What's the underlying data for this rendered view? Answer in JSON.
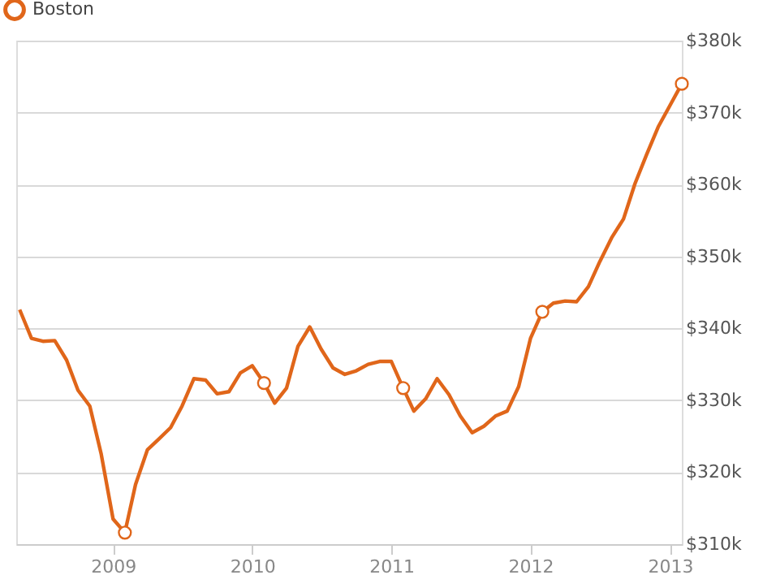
{
  "chart_data": {
    "type": "line",
    "x": [
      "2008-05",
      "2008-06",
      "2008-07",
      "2008-08",
      "2008-09",
      "2008-10",
      "2008-11",
      "2008-12",
      "2009-01",
      "2009-02",
      "2009-03",
      "2009-04",
      "2009-05",
      "2009-06",
      "2009-07",
      "2009-08",
      "2009-09",
      "2009-10",
      "2009-11",
      "2009-12",
      "2010-01",
      "2010-02",
      "2010-03",
      "2010-04",
      "2010-05",
      "2010-06",
      "2010-07",
      "2010-08",
      "2010-09",
      "2010-10",
      "2010-11",
      "2010-12",
      "2011-01",
      "2011-02",
      "2011-03",
      "2011-04",
      "2011-05",
      "2011-06",
      "2011-07",
      "2011-08",
      "2011-09",
      "2011-10",
      "2011-11",
      "2011-12",
      "2012-01",
      "2012-02",
      "2012-03",
      "2012-04",
      "2012-05",
      "2012-06",
      "2012-07",
      "2012-08",
      "2012-09",
      "2012-10",
      "2012-11",
      "2012-12",
      "2013-01",
      "2013-02"
    ],
    "series": [
      {
        "name": "Boston",
        "color": "#e0661a",
        "values": [
          342600,
          338600,
          338200,
          338300,
          335600,
          331400,
          329200,
          322500,
          313500,
          311600,
          318300,
          323100,
          324600,
          326200,
          329200,
          333000,
          332800,
          330900,
          331200,
          333800,
          334800,
          332400,
          329600,
          331700,
          337500,
          340200,
          337100,
          334500,
          333600,
          334100,
          335000,
          335400,
          335400,
          331700,
          328500,
          330200,
          333000,
          330800,
          327800,
          325500,
          326400,
          327800,
          328500,
          331900,
          338600,
          342300,
          343500,
          343800,
          343700,
          345800,
          349300,
          352600,
          355200,
          360100,
          364200,
          368000,
          371000,
          374000
        ],
        "marker": "none"
      },
      {
        "type": "scatter",
        "color": "#e0661a",
        "marker": "circle",
        "x": [
          "2009-02",
          "2010-02",
          "2011-02",
          "2012-02",
          "2013-02"
        ],
        "values": [
          311600,
          332400,
          331700,
          342300,
          374000
        ]
      }
    ],
    "xlim": [
      "2008-04-22",
      "2013-02-01"
    ],
    "xticks": [
      "2009",
      "2010",
      "2011",
      "2012",
      "2013"
    ],
    "ylim": [
      310000,
      380000
    ],
    "yticks": [
      {
        "value": 310000,
        "label": "$310k"
      },
      {
        "value": 320000,
        "label": "$320k"
      },
      {
        "value": 330000,
        "label": "$330k"
      },
      {
        "value": 340000,
        "label": "$340k"
      },
      {
        "value": 350000,
        "label": "$350k"
      },
      {
        "value": 360000,
        "label": "$360k"
      },
      {
        "value": 370000,
        "label": "$370k"
      },
      {
        "value": 380000,
        "label": "$380k"
      }
    ],
    "grid": "y",
    "legend": "top left",
    "line_style": "solid"
  }
}
